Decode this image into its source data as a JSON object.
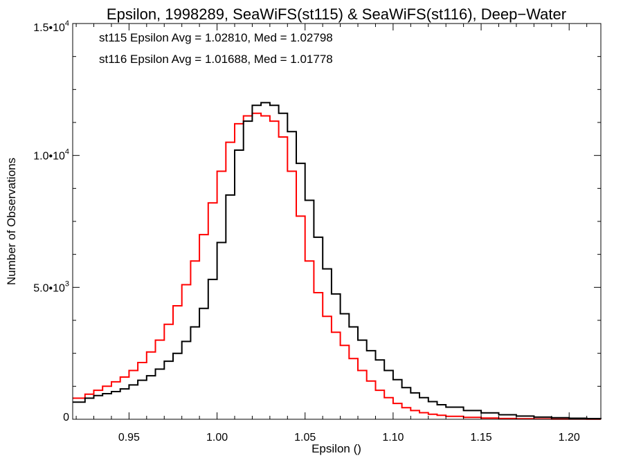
{
  "chart_data": {
    "type": "line",
    "title": "Epsilon, 1998289, SeaWiFS(st115) & SeaWiFS(st116), Deep−Water",
    "xlabel": "Epsilon ()",
    "ylabel": "Number of Observations",
    "xlim": [
      0.918,
      1.218
    ],
    "ylim": [
      0,
      15000
    ],
    "xticks": [
      0.95,
      1.0,
      1.05,
      1.1,
      1.15,
      1.2
    ],
    "xtick_labels": [
      "0.95",
      "1.00",
      "1.05",
      "1.10",
      "1.15",
      "1.20"
    ],
    "yticks": [
      0,
      5000,
      10000,
      15000
    ],
    "ytick_labels": [
      {
        "mantissa": "0",
        "exp": ""
      },
      {
        "mantissa": "5.0•10",
        "exp": "3"
      },
      {
        "mantissa": "1.0•10",
        "exp": "4"
      },
      {
        "mantissa": "1.5•10",
        "exp": "4"
      }
    ],
    "grid": false,
    "step": true,
    "annotations": [
      {
        "text": "st115 Epsilon Avg = 1.02810, Med = 1.02798",
        "color": "#000000"
      },
      {
        "text": "st116 Epsilon Avg = 1.01688, Med = 1.01778",
        "color": "#ff0000"
      }
    ],
    "series": [
      {
        "color": "#000000",
        "x": [
          0.918,
          0.925,
          0.93,
          0.935,
          0.94,
          0.945,
          0.95,
          0.955,
          0.96,
          0.965,
          0.97,
          0.975,
          0.98,
          0.985,
          0.99,
          0.995,
          1.0,
          1.005,
          1.01,
          1.015,
          1.02,
          1.025,
          1.03,
          1.035,
          1.04,
          1.045,
          1.05,
          1.055,
          1.06,
          1.065,
          1.07,
          1.075,
          1.08,
          1.085,
          1.09,
          1.095,
          1.1,
          1.105,
          1.11,
          1.115,
          1.12,
          1.125,
          1.13,
          1.14,
          1.15,
          1.16,
          1.17,
          1.18,
          1.19,
          1.2,
          1.21,
          1.218
        ],
        "values": [
          650,
          800,
          900,
          970,
          1050,
          1150,
          1300,
          1480,
          1650,
          1900,
          2200,
          2500,
          2950,
          3500,
          4200,
          5300,
          6700,
          8500,
          10200,
          11300,
          11900,
          12000,
          11900,
          11600,
          10900,
          9700,
          8300,
          6900,
          5700,
          4750,
          4000,
          3500,
          3000,
          2600,
          2250,
          1850,
          1500,
          1200,
          1000,
          820,
          670,
          550,
          460,
          330,
          240,
          170,
          120,
          80,
          60,
          40,
          25,
          15
        ]
      },
      {
        "color": "#ff0000",
        "x": [
          0.918,
          0.925,
          0.93,
          0.935,
          0.94,
          0.945,
          0.95,
          0.955,
          0.96,
          0.965,
          0.97,
          0.975,
          0.98,
          0.985,
          0.99,
          0.995,
          1.0,
          1.005,
          1.01,
          1.015,
          1.02,
          1.025,
          1.03,
          1.035,
          1.04,
          1.045,
          1.05,
          1.055,
          1.06,
          1.065,
          1.07,
          1.075,
          1.08,
          1.085,
          1.09,
          1.095,
          1.1,
          1.105,
          1.11,
          1.115,
          1.12,
          1.125,
          1.13,
          1.14,
          1.15,
          1.16,
          1.17,
          1.18,
          1.19,
          1.2,
          1.21,
          1.218
        ],
        "values": [
          800,
          950,
          1100,
          1250,
          1420,
          1600,
          1850,
          2150,
          2550,
          3000,
          3600,
          4300,
          5100,
          6000,
          7000,
          8200,
          9400,
          10500,
          11200,
          11500,
          11600,
          11500,
          11300,
          10700,
          9400,
          7700,
          6000,
          4800,
          3900,
          3300,
          2800,
          2300,
          1850,
          1450,
          1100,
          820,
          600,
          440,
          330,
          250,
          190,
          150,
          110,
          70,
          45,
          30,
          20,
          12,
          8,
          5,
          3,
          2
        ]
      }
    ]
  }
}
